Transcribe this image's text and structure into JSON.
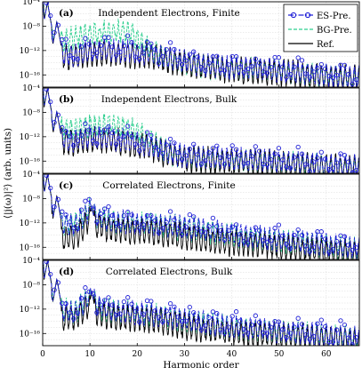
{
  "chart_data": {
    "type": "line",
    "xlabel": "Harmonic order",
    "ylabel": "⟨|j(ω)|²⟩ (arb. units)",
    "xlim": [
      0,
      67
    ],
    "xticks": [
      0,
      10,
      20,
      30,
      40,
      50,
      60
    ],
    "y_scale": "log",
    "ylim": [
      1e-18,
      0.0001
    ],
    "yticks": [
      {
        "value": -4,
        "label": "10⁻⁴"
      },
      {
        "value": -8,
        "label": "10⁻⁸"
      },
      {
        "value": -12,
        "label": "10⁻¹²"
      },
      {
        "value": -16,
        "label": "10⁻¹⁶"
      }
    ],
    "grid": true,
    "legend": {
      "placement": "top-right",
      "entries": [
        {
          "name": "ES-Pre.",
          "color": "#1f1fd6",
          "style": "dash-dot with circle markers"
        },
        {
          "name": "BG-Pre.",
          "color": "#2ecf8f",
          "style": "dashed"
        },
        {
          "name": "Ref.",
          "color": "#000000",
          "style": "solid"
        }
      ]
    },
    "panels": [
      {
        "label": "(a)",
        "title": "Independent Electrons, Finite",
        "envelope": {
          "ref": [
            [
              0,
              -5.5
            ],
            [
              2,
              -11.6
            ],
            [
              4,
              -12.9
            ],
            [
              7,
              -13.1
            ],
            [
              10,
              -12.5
            ],
            [
              14,
              -12.4
            ],
            [
              18,
              -12.6
            ],
            [
              22,
              -12.8
            ],
            [
              26,
              -13.4
            ],
            [
              30,
              -14.2
            ],
            [
              35,
              -14.8
            ],
            [
              40,
              -15.2
            ],
            [
              45,
              -15.3
            ],
            [
              50,
              -15.6
            ],
            [
              55,
              -16.0
            ],
            [
              60,
              -16.4
            ],
            [
              67,
              -16.6
            ]
          ],
          "es": [
            [
              0,
              -5.3
            ],
            [
              2,
              -11.3
            ],
            [
              4,
              -12.5
            ],
            [
              7,
              -12.8
            ],
            [
              10,
              -12.0
            ],
            [
              14,
              -11.9
            ],
            [
              18,
              -12.2
            ],
            [
              22,
              -12.5
            ],
            [
              26,
              -13.1
            ],
            [
              30,
              -13.8
            ],
            [
              35,
              -14.5
            ],
            [
              40,
              -14.9
            ],
            [
              45,
              -15.0
            ],
            [
              50,
              -15.3
            ],
            [
              55,
              -15.7
            ],
            [
              60,
              -16.1
            ],
            [
              67,
              -16.4
            ]
          ],
          "bg": [
            [
              0,
              -5.0
            ],
            [
              2,
              -10.2
            ],
            [
              4,
              -10.2
            ],
            [
              7,
              -10.0
            ],
            [
              10,
              -9.3
            ],
            [
              13,
              -9.1
            ],
            [
              16,
              -9.0
            ],
            [
              19,
              -9.3
            ],
            [
              21,
              -10.7
            ],
            [
              23,
              -12.0
            ],
            [
              26,
              -13.2
            ],
            [
              30,
              -14.0
            ],
            [
              35,
              -14.7
            ],
            [
              40,
              -15.0
            ],
            [
              45,
              -15.1
            ],
            [
              50,
              -15.4
            ],
            [
              55,
              -15.8
            ],
            [
              60,
              -16.2
            ],
            [
              67,
              -16.5
            ]
          ],
          "peaks": [
            [
              1.0,
              -4.0
            ],
            [
              3.0,
              -7.2
            ]
          ]
        }
      },
      {
        "label": "(b)",
        "title": "Independent Electrons, Bulk",
        "envelope": {
          "ref": [
            [
              0,
              -5.5
            ],
            [
              2,
              -11.5
            ],
            [
              4,
              -12.8
            ],
            [
              7,
              -13.0
            ],
            [
              10,
              -12.4
            ],
            [
              14,
              -12.6
            ],
            [
              18,
              -13.0
            ],
            [
              22,
              -13.6
            ],
            [
              26,
              -14.8
            ],
            [
              30,
              -15.6
            ],
            [
              35,
              -15.9
            ],
            [
              40,
              -16.0
            ],
            [
              45,
              -16.2
            ],
            [
              50,
              -16.4
            ],
            [
              55,
              -16.7
            ],
            [
              60,
              -17.0
            ],
            [
              67,
              -17.2
            ]
          ],
          "es": [
            [
              0,
              -5.3
            ],
            [
              2,
              -11.2
            ],
            [
              4,
              -12.4
            ],
            [
              7,
              -12.6
            ],
            [
              10,
              -12.0
            ],
            [
              14,
              -12.2
            ],
            [
              18,
              -12.7
            ],
            [
              22,
              -13.3
            ],
            [
              26,
              -14.4
            ],
            [
              30,
              -15.2
            ],
            [
              35,
              -15.5
            ],
            [
              40,
              -15.6
            ],
            [
              45,
              -15.8
            ],
            [
              50,
              -16.0
            ],
            [
              55,
              -16.3
            ],
            [
              60,
              -16.6
            ],
            [
              67,
              -16.9
            ]
          ],
          "bg": [
            [
              0,
              -5.0
            ],
            [
              2,
              -10.6
            ],
            [
              4,
              -10.8
            ],
            [
              7,
              -10.8
            ],
            [
              10,
              -10.2
            ],
            [
              13,
              -10.1
            ],
            [
              16,
              -10.3
            ],
            [
              19,
              -10.7
            ],
            [
              22,
              -12.2
            ],
            [
              25,
              -13.8
            ],
            [
              28,
              -15.0
            ],
            [
              32,
              -15.6
            ],
            [
              36,
              -15.8
            ],
            [
              40,
              -15.9
            ],
            [
              45,
              -16.1
            ],
            [
              50,
              -16.3
            ],
            [
              55,
              -16.6
            ],
            [
              60,
              -16.9
            ],
            [
              67,
              -17.1
            ]
          ],
          "peaks": [
            [
              1.0,
              -4.0
            ],
            [
              3.0,
              -7.8
            ]
          ]
        }
      },
      {
        "label": "(c)",
        "title": "Correlated Electrons, Finite",
        "envelope": {
          "ref": [
            [
              0,
              -5.5
            ],
            [
              2,
              -12.0
            ],
            [
              4,
              -14.6
            ],
            [
              7,
              -14.4
            ],
            [
              10,
              -11.3
            ],
            [
              12,
              -12.6
            ],
            [
              16,
              -13.2
            ],
            [
              20,
              -13.2
            ],
            [
              25,
              -13.6
            ],
            [
              30,
              -14.3
            ],
            [
              35,
              -14.8
            ],
            [
              40,
              -15.2
            ],
            [
              45,
              -15.5
            ],
            [
              50,
              -15.9
            ],
            [
              55,
              -16.4
            ],
            [
              60,
              -16.7
            ],
            [
              67,
              -17.0
            ]
          ],
          "es": [
            [
              0,
              -5.3
            ],
            [
              2,
              -11.0
            ],
            [
              4,
              -12.3
            ],
            [
              7,
              -12.4
            ],
            [
              10,
              -9.8
            ],
            [
              12,
              -11.2
            ],
            [
              16,
              -11.9
            ],
            [
              20,
              -12.0
            ],
            [
              25,
              -12.3
            ],
            [
              30,
              -12.7
            ],
            [
              35,
              -13.3
            ],
            [
              40,
              -13.9
            ],
            [
              45,
              -14.3
            ],
            [
              50,
              -14.8
            ],
            [
              55,
              -15.2
            ],
            [
              60,
              -15.6
            ],
            [
              67,
              -16.2
            ]
          ],
          "bg": [
            [
              0,
              -5.0
            ],
            [
              2,
              -10.8
            ],
            [
              4,
              -12.0
            ],
            [
              7,
              -12.1
            ],
            [
              10,
              -9.5
            ],
            [
              12,
              -11.3
            ],
            [
              16,
              -12.0
            ],
            [
              20,
              -12.0
            ],
            [
              25,
              -12.4
            ],
            [
              30,
              -12.9
            ],
            [
              35,
              -13.4
            ],
            [
              40,
              -14.0
            ],
            [
              45,
              -14.5
            ],
            [
              50,
              -15.0
            ],
            [
              55,
              -15.3
            ],
            [
              60,
              -15.8
            ],
            [
              67,
              -16.3
            ]
          ],
          "peaks": [
            [
              1.0,
              -4.0
            ],
            [
              3.0,
              -7.5
            ],
            [
              10.4,
              -9.2
            ]
          ]
        }
      },
      {
        "label": "(d)",
        "title": "Correlated Electrons, Bulk",
        "envelope": {
          "ref": [
            [
              0,
              -5.5
            ],
            [
              2,
              -12.0
            ],
            [
              4,
              -13.6
            ],
            [
              7,
              -13.2
            ],
            [
              10,
              -11.5
            ],
            [
              12,
              -12.8
            ],
            [
              16,
              -13.4
            ],
            [
              20,
              -13.6
            ],
            [
              25,
              -14.0
            ],
            [
              30,
              -14.8
            ],
            [
              35,
              -15.4
            ],
            [
              40,
              -15.8
            ],
            [
              45,
              -16.0
            ],
            [
              50,
              -16.3
            ],
            [
              55,
              -16.6
            ],
            [
              60,
              -16.9
            ],
            [
              67,
              -17.2
            ]
          ],
          "es": [
            [
              0,
              -5.3
            ],
            [
              2,
              -11.3
            ],
            [
              4,
              -12.5
            ],
            [
              7,
              -12.4
            ],
            [
              10,
              -9.8
            ],
            [
              12,
              -11.6
            ],
            [
              16,
              -12.4
            ],
            [
              20,
              -12.6
            ],
            [
              25,
              -13.0
            ],
            [
              30,
              -13.7
            ],
            [
              35,
              -14.4
            ],
            [
              40,
              -14.9
            ],
            [
              45,
              -15.2
            ],
            [
              50,
              -15.6
            ],
            [
              55,
              -15.9
            ],
            [
              60,
              -16.3
            ],
            [
              67,
              -16.7
            ]
          ],
          "bg": [
            [
              0,
              -5.0
            ],
            [
              2,
              -11.0
            ],
            [
              4,
              -12.3
            ],
            [
              7,
              -12.3
            ],
            [
              10,
              -10.0
            ],
            [
              12,
              -11.8
            ],
            [
              16,
              -12.5
            ],
            [
              20,
              -12.7
            ],
            [
              25,
              -13.2
            ],
            [
              30,
              -13.9
            ],
            [
              35,
              -14.6
            ],
            [
              40,
              -15.1
            ],
            [
              45,
              -15.4
            ],
            [
              50,
              -15.8
            ],
            [
              55,
              -16.1
            ],
            [
              60,
              -16.5
            ],
            [
              67,
              -16.9
            ]
          ],
          "peaks": [
            [
              1.0,
              -4.0
            ],
            [
              3.0,
              -7.0
            ],
            [
              10.4,
              -9.0
            ]
          ]
        }
      }
    ]
  }
}
